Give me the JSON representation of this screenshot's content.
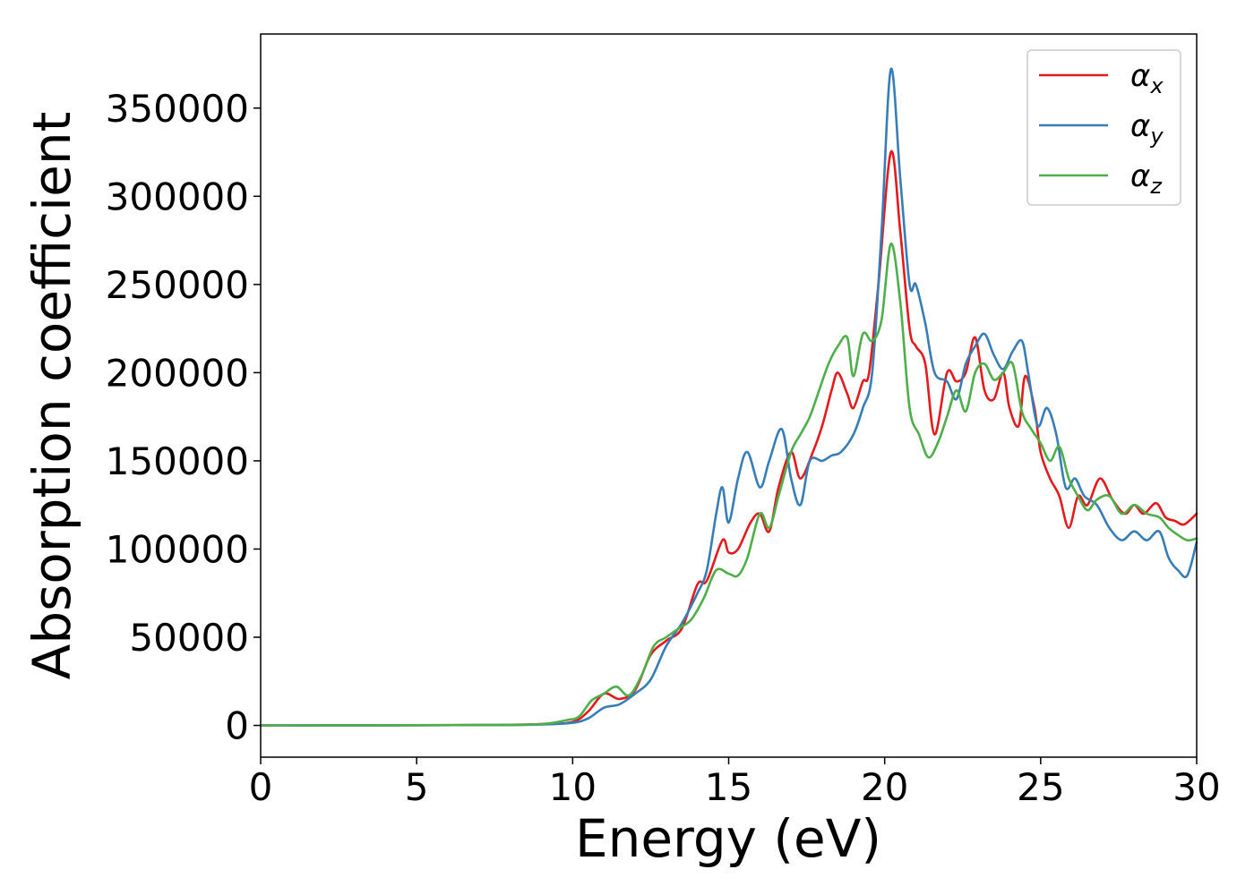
{
  "chart_data": {
    "type": "line",
    "xlabel": "Energy (eV)",
    "ylabel": "Absorption coefficient",
    "xlim": [
      0,
      30
    ],
    "ylim": [
      -18000,
      392000
    ],
    "x_ticks": [
      0,
      5,
      10,
      15,
      20,
      25,
      30
    ],
    "y_ticks": [
      0,
      50000,
      100000,
      150000,
      200000,
      250000,
      300000,
      350000
    ],
    "grid": false,
    "legend_position": "top-right",
    "series": [
      {
        "name": "αx",
        "legend_symbol": "α",
        "legend_subscript": "x",
        "color": "#e41a1c",
        "x": [
          0,
          7,
          9,
          10,
          10.5,
          11,
          11.5,
          12,
          12.5,
          13,
          13.5,
          14,
          14.3,
          14.8,
          15,
          15.3,
          15.7,
          16,
          16.3,
          16.6,
          17,
          17.3,
          17.7,
          18,
          18.3,
          18.5,
          18.8,
          19,
          19.3,
          19.5,
          19.8,
          20.2,
          20.5,
          20.8,
          21,
          21.3,
          21.6,
          22,
          22.3,
          22.6,
          22.9,
          23.2,
          23.5,
          23.8,
          24,
          24.3,
          24.5,
          24.8,
          25,
          25.3,
          25.6,
          25.9,
          26.2,
          26.5,
          26.9,
          27.3,
          27.7,
          28,
          28.3,
          28.7,
          29,
          29.3,
          29.6,
          30
        ],
        "y": [
          0,
          200,
          800,
          2000,
          8000,
          18000,
          15000,
          20000,
          40000,
          48000,
          55000,
          80000,
          82000,
          105000,
          98000,
          100000,
          115000,
          120000,
          110000,
          135000,
          155000,
          140000,
          155000,
          170000,
          190000,
          200000,
          188000,
          180000,
          195000,
          200000,
          250000,
          325000,
          280000,
          225000,
          215000,
          205000,
          165000,
          200000,
          195000,
          200000,
          220000,
          190000,
          185000,
          200000,
          180000,
          170000,
          198000,
          180000,
          155000,
          140000,
          130000,
          112000,
          130000,
          125000,
          140000,
          128000,
          120000,
          125000,
          120000,
          126000,
          118000,
          116000,
          114000,
          120000
        ]
      },
      {
        "name": "αy",
        "legend_symbol": "α",
        "legend_subscript": "y",
        "color": "#377eb8",
        "x": [
          0,
          7,
          9,
          10,
          10.5,
          11,
          11.5,
          12,
          12.5,
          13,
          13.5,
          14,
          14.3,
          14.6,
          14.8,
          15,
          15.3,
          15.6,
          16,
          16.3,
          16.7,
          17,
          17.3,
          17.6,
          18,
          18.3,
          18.6,
          19,
          19.3,
          19.6,
          19.9,
          20.2,
          20.5,
          20.8,
          21,
          21.3,
          21.6,
          22,
          22.3,
          22.6,
          22.9,
          23.2,
          23.5,
          23.8,
          24.1,
          24.4,
          24.6,
          24.9,
          25.2,
          25.5,
          25.8,
          26.1,
          26.4,
          26.8,
          27.2,
          27.6,
          28,
          28.4,
          28.8,
          29.1,
          29.4,
          29.7,
          30
        ],
        "y": [
          0,
          150,
          500,
          1500,
          4000,
          10000,
          12000,
          18000,
          26000,
          45000,
          58000,
          75000,
          88000,
          120000,
          135000,
          115000,
          140000,
          155000,
          135000,
          150000,
          168000,
          140000,
          125000,
          150000,
          150000,
          153000,
          155000,
          165000,
          180000,
          200000,
          280000,
          372000,
          310000,
          250000,
          250000,
          228000,
          200000,
          195000,
          185000,
          205000,
          215000,
          222000,
          210000,
          202000,
          212000,
          218000,
          200000,
          170000,
          180000,
          165000,
          135000,
          140000,
          130000,
          125000,
          112000,
          105000,
          110000,
          105000,
          110000,
          95000,
          88000,
          85000,
          104000
        ]
      },
      {
        "name": "αz",
        "legend_symbol": "α",
        "legend_subscript": "z",
        "color": "#4daf4a",
        "x": [
          0,
          7,
          9,
          9.8,
          10.2,
          10.6,
          11,
          11.4,
          11.8,
          12.2,
          12.6,
          13,
          13.4,
          13.8,
          14.2,
          14.6,
          15,
          15.3,
          15.6,
          16,
          16.3,
          16.6,
          17,
          17.3,
          17.6,
          17.9,
          18.2,
          18.5,
          18.8,
          19,
          19.3,
          19.6,
          19.9,
          20.2,
          20.5,
          20.8,
          21.1,
          21.4,
          21.7,
          22,
          22.3,
          22.6,
          22.9,
          23.2,
          23.5,
          23.8,
          24.1,
          24.4,
          24.7,
          25,
          25.3,
          25.6,
          25.9,
          26.2,
          26.5,
          26.8,
          27.2,
          27.6,
          28,
          28.4,
          28.8,
          29.1,
          29.4,
          29.7,
          30
        ],
        "y": [
          0,
          200,
          800,
          3000,
          5000,
          14000,
          18000,
          22000,
          17000,
          28000,
          45000,
          50000,
          55000,
          60000,
          72000,
          88000,
          86000,
          85000,
          95000,
          120000,
          112000,
          130000,
          155000,
          165000,
          175000,
          190000,
          205000,
          215000,
          220000,
          198000,
          222000,
          218000,
          230000,
          273000,
          240000,
          180000,
          165000,
          152000,
          160000,
          175000,
          190000,
          178000,
          200000,
          205000,
          196000,
          200000,
          205000,
          178000,
          168000,
          160000,
          150000,
          158000,
          140000,
          130000,
          122000,
          128000,
          130000,
          120000,
          125000,
          120000,
          118000,
          112000,
          108000,
          105000,
          106000
        ]
      }
    ]
  }
}
